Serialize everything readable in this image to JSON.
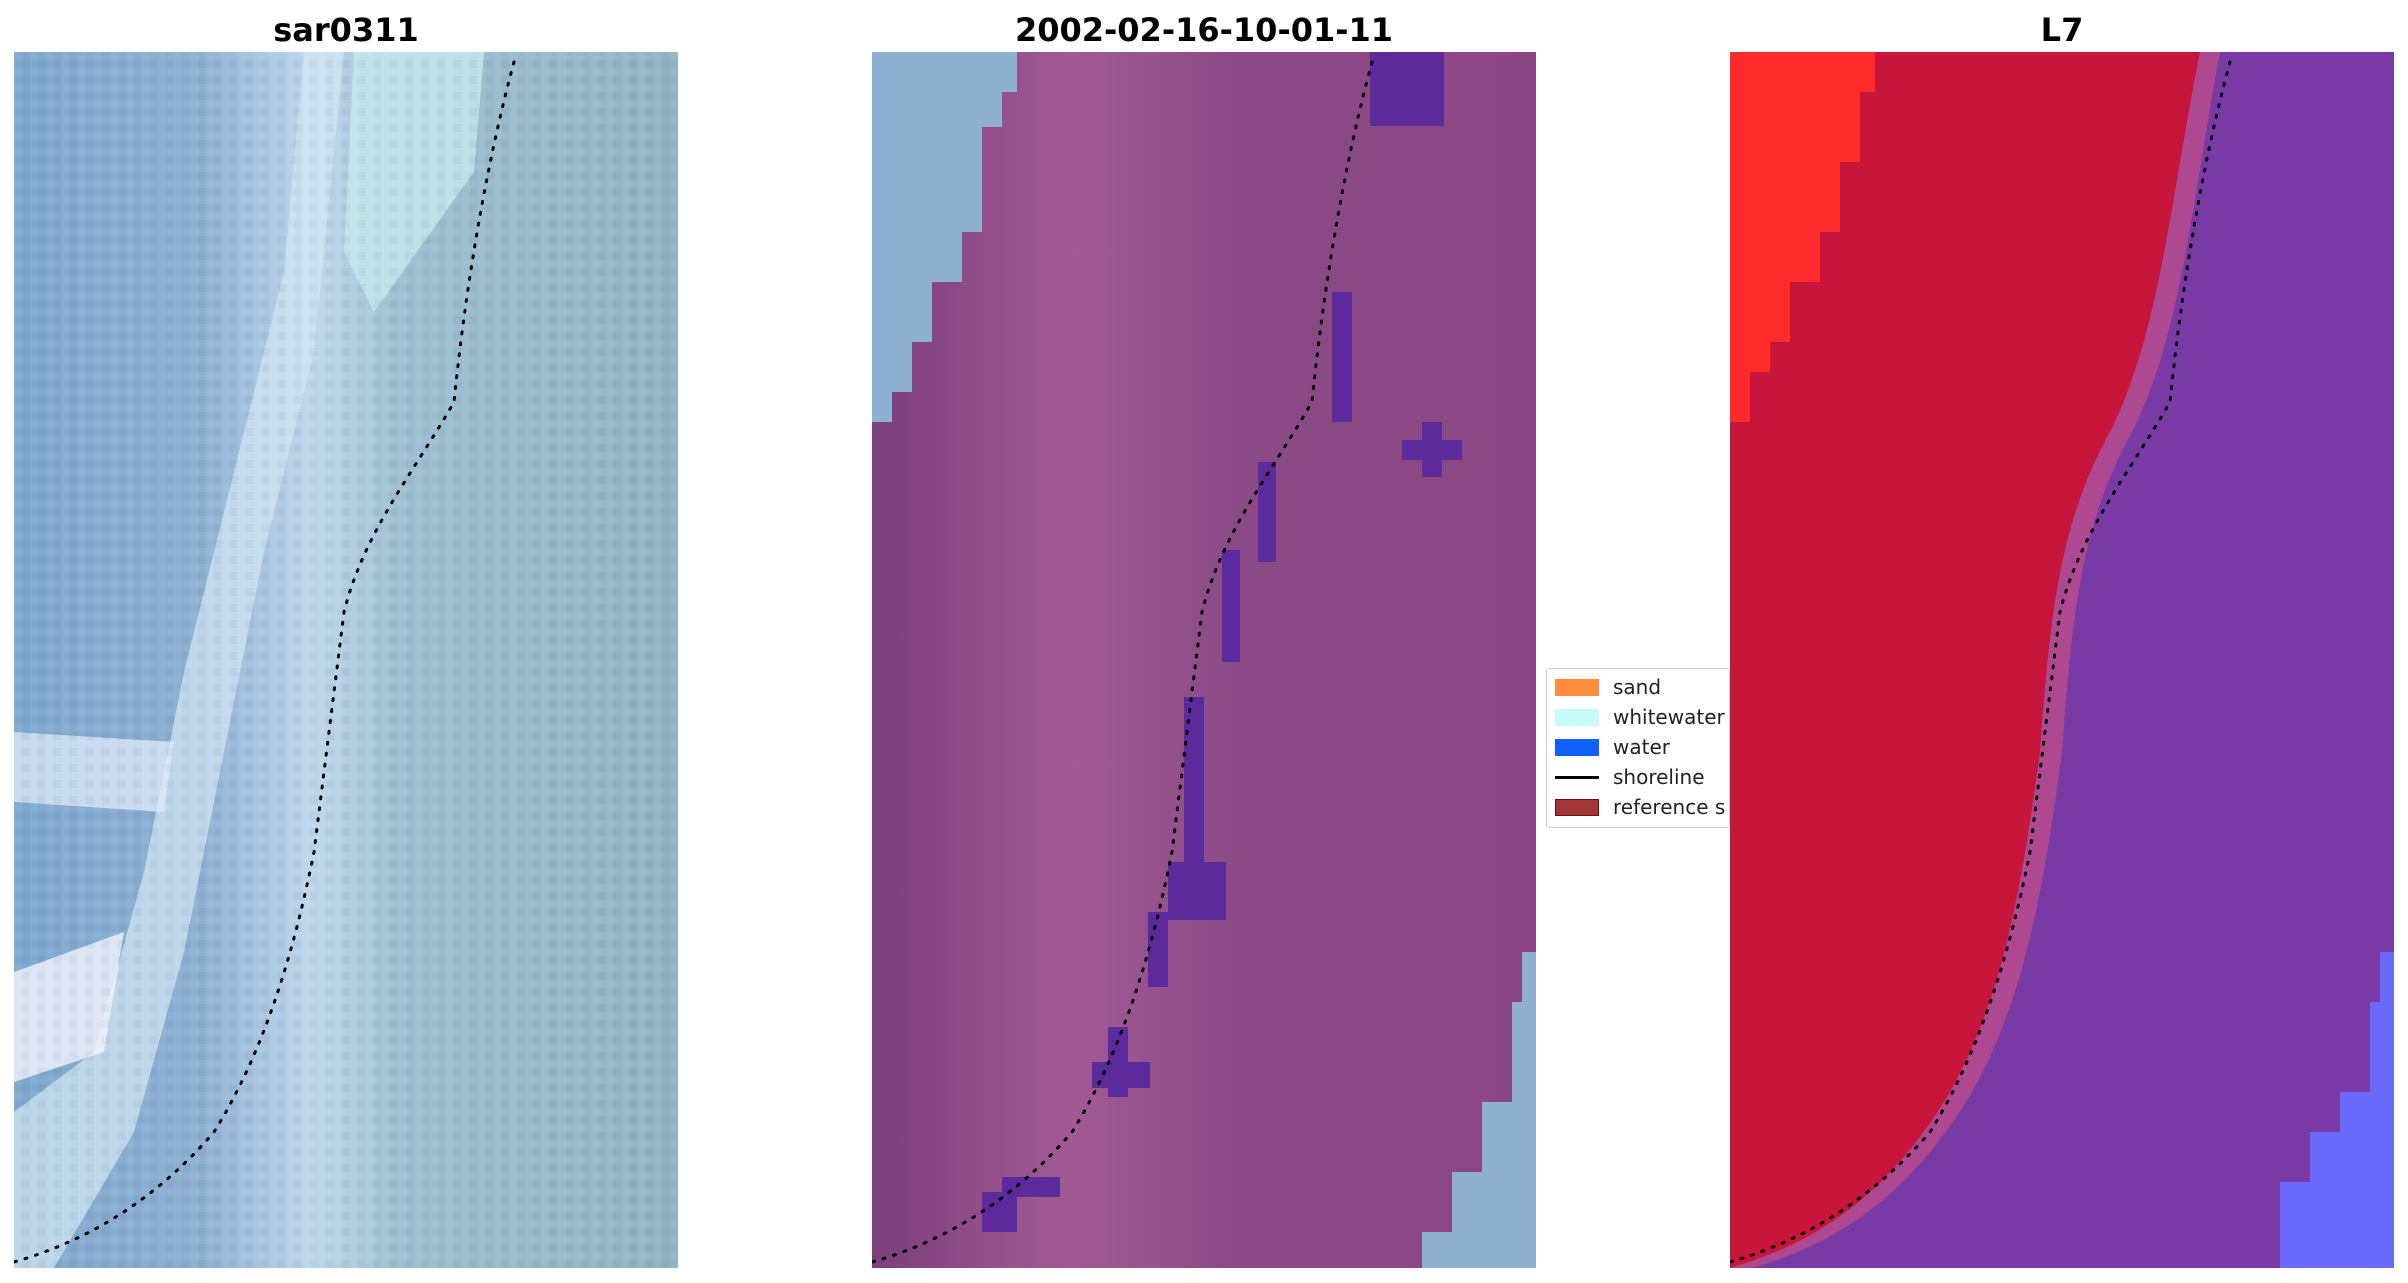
{
  "panels": [
    {
      "title": "sar0311",
      "image": "natural-color satellite image of coastline",
      "base_color": "#93b4c3",
      "land_color": "#7fa8cf",
      "accent_color": "#d6ecf5"
    },
    {
      "title": "2002-02-16-10-01-11",
      "image": "classified coastline image with water pixels highlighted",
      "base_color": "#8a4a85",
      "land_color": "#7b3f7a",
      "accent_color": "#b06aa0",
      "water_pixel_color": "#5c2a9a",
      "unclassified_color": "#8fb1cf"
    },
    {
      "title": "L7",
      "image": "false-color satellite image of coastline",
      "base_color": "#7a3aa6",
      "land_color": "#c8153c",
      "accent_color": "#ff2a2a",
      "edge_color": "#6a6aff"
    }
  ],
  "legend": {
    "items": [
      {
        "label": "sand",
        "color": "#ff8c3a",
        "kind": "patch"
      },
      {
        "label": "whitewater",
        "color": "#c8fafa",
        "kind": "patch"
      },
      {
        "label": "water",
        "color": "#1060ff",
        "kind": "patch"
      },
      {
        "label": "shoreline",
        "color": "#000000",
        "kind": "line"
      },
      {
        "label": "reference s",
        "color": "#a23535",
        "kind": "patch"
      }
    ]
  },
  "shoreline_color": "#000000"
}
